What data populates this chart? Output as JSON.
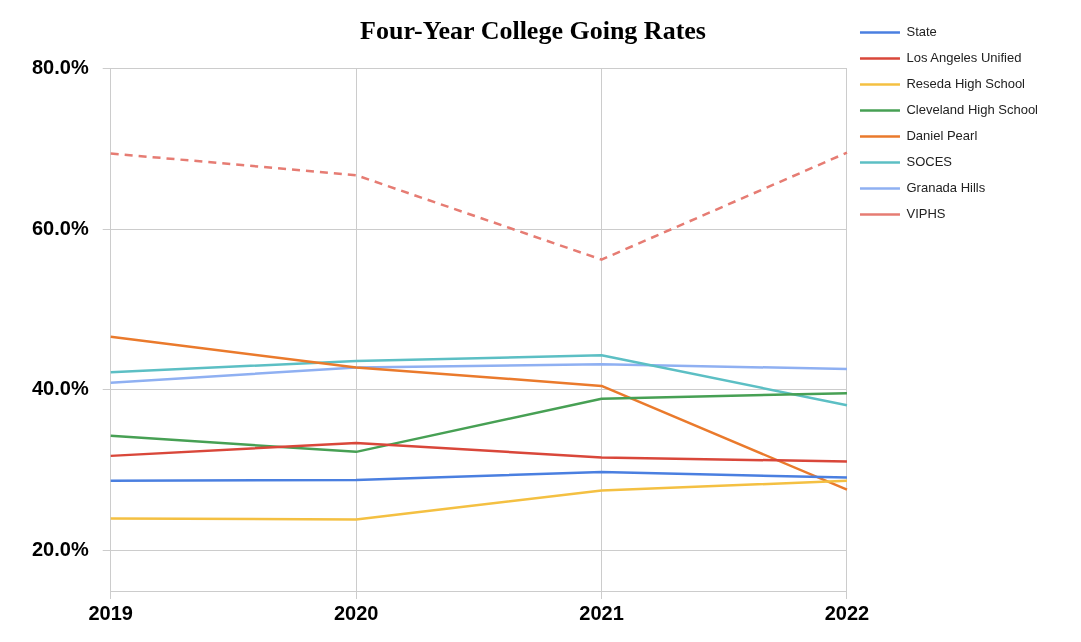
{
  "chart_data": {
    "type": "line",
    "title": "Four-Year College Going Rates",
    "categories": [
      "2019",
      "2020",
      "2021",
      "2022"
    ],
    "series": [
      {
        "name": "State",
        "color": "#4a7fe0",
        "values": [
          28.7,
          28.8,
          29.8,
          29.1
        ]
      },
      {
        "name": "Los Angeles Unified",
        "color": "#d9473a",
        "values": [
          31.8,
          33.4,
          31.6,
          31.1
        ]
      },
      {
        "name": "Reseda High School",
        "color": "#f4c042",
        "values": [
          24.0,
          23.9,
          27.5,
          28.7
        ]
      },
      {
        "name": "Cleveland High School",
        "color": "#47a054",
        "values": [
          34.3,
          32.3,
          38.9,
          39.6
        ]
      },
      {
        "name": "Daniel Pearl",
        "color": "#ea7a2c",
        "values": [
          46.6,
          42.8,
          40.5,
          27.6
        ]
      },
      {
        "name": "SOCES",
        "color": "#5cbfc4",
        "values": [
          42.2,
          43.6,
          44.3,
          38.1
        ]
      },
      {
        "name": "Granada Hills",
        "color": "#8fb0f2",
        "values": [
          40.9,
          42.8,
          43.2,
          42.6
        ]
      },
      {
        "name": "VIPHS",
        "color": "#e67c73",
        "line_style": "dashed",
        "values": [
          69.4,
          66.7,
          56.2,
          69.5
        ]
      }
    ],
    "ylim": [
      15,
      80
    ],
    "yticks": [
      {
        "value": 20,
        "label": "20.0%"
      },
      {
        "value": 40,
        "label": "40.0%"
      },
      {
        "value": 60,
        "label": "60.0%"
      },
      {
        "value": 80,
        "label": "80.0%"
      }
    ],
    "grid": true,
    "legend": "right",
    "marker": "none",
    "line_style": "solid"
  }
}
